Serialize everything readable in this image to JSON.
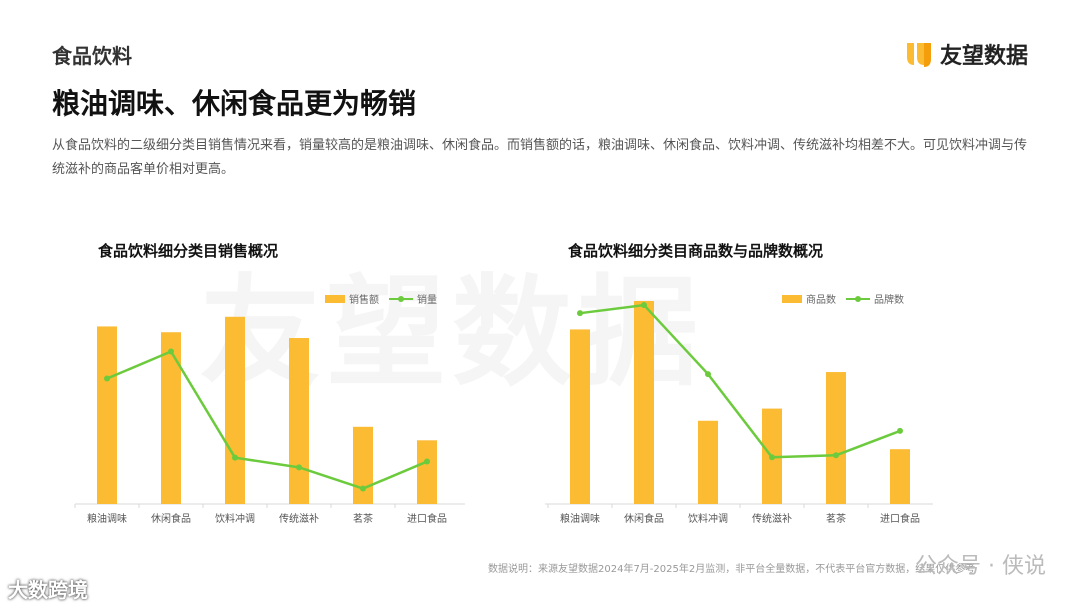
{
  "section": "食品饮料",
  "brand": {
    "name": "友望数据"
  },
  "headline": "粮油调味、休闲食品更为畅销",
  "intro": "从食品饮料的二级细分类目销售情况来看，销量较高的是粮油调味、休闲食品。而销售额的话，粮油调味、休闲食品、饮料冲调、传统滋补均相差不大。可见饮料冲调与传统滋补的商品客单价相对更高。",
  "watermark": "友望数据",
  "colors": {
    "bar": "#FBBB33",
    "line": "#6CCB3D"
  },
  "chart_data": [
    {
      "type": "bar",
      "title": "食品饮料细分类目销售概况",
      "categories": [
        "粮油调味",
        "休闲食品",
        "饮料冲调",
        "传统滋补",
        "茗茶",
        "进口食品"
      ],
      "series": [
        {
          "name": "销售额",
          "kind": "bar",
          "values": [
            92,
            89,
            97,
            86,
            40,
            33
          ]
        },
        {
          "name": "销量",
          "kind": "line",
          "values": [
            65,
            79,
            24,
            19,
            8,
            22
          ]
        }
      ],
      "ylim": [
        0,
        100
      ],
      "legend": "top-right",
      "grid": false
    },
    {
      "type": "bar",
      "title": "食品饮料细分类目商品数与品牌数概况",
      "categories": [
        "粮油调味",
        "休闲食品",
        "饮料冲调",
        "传统滋补",
        "茗茶",
        "进口食品"
      ],
      "series": [
        {
          "name": "商品数",
          "kind": "bar",
          "values": [
            86,
            100,
            41,
            47,
            65,
            27
          ]
        },
        {
          "name": "品牌数",
          "kind": "line",
          "values": [
            94,
            98,
            64,
            23,
            24,
            36
          ]
        }
      ],
      "ylim": [
        0,
        100
      ],
      "legend": "top-right",
      "grid": false
    }
  ],
  "footnote": "数据说明：来源友望数据2024年7月-2025年2月监测，非平台全量数据，不代表平台官方数据，结果仅供参考",
  "overlay_left": "大数跨境",
  "overlay_right": "公众号 · 侠说"
}
